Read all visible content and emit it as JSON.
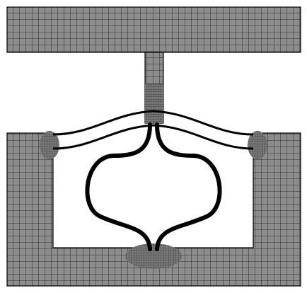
{
  "figure": {
    "kind": "finite-element-mesh",
    "parts": [
      "top-crossbar",
      "vertical-stem",
      "bottom-frame",
      "upper-curved-beams",
      "bulb-shaped-flexure"
    ],
    "colors": {
      "mesh_fill": "#8c8c8c",
      "mesh_lines": "#141414",
      "beam_stroke": "#000000",
      "background": "#ffffff"
    }
  }
}
